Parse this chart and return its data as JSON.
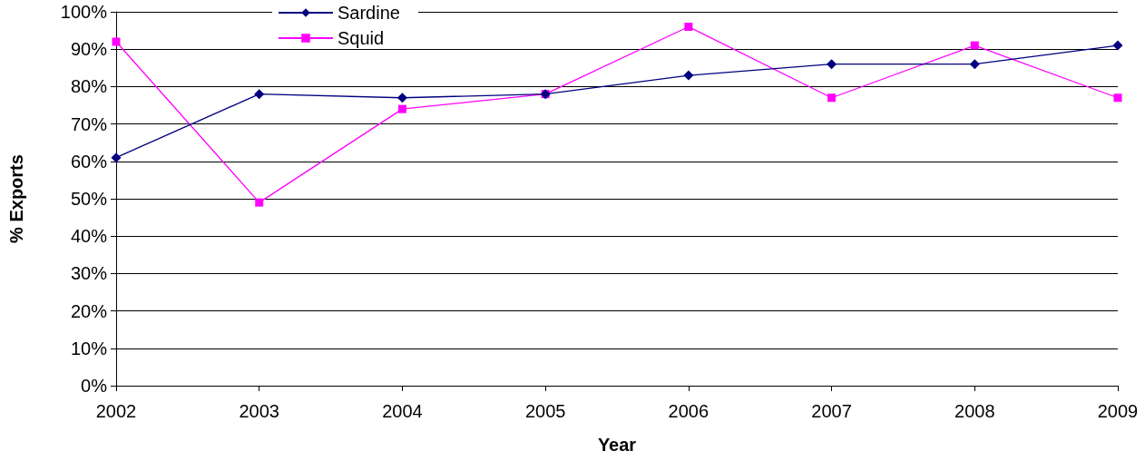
{
  "chart_data": {
    "type": "line",
    "xlabel": "Year",
    "ylabel": "% Exports",
    "categories": [
      "2002",
      "2003",
      "2004",
      "2005",
      "2006",
      "2007",
      "2008",
      "2009"
    ],
    "series": [
      {
        "name": "Sardine",
        "color": "#000080",
        "marker": "diamond",
        "values": [
          61,
          78,
          77,
          78,
          83,
          86,
          86,
          91
        ]
      },
      {
        "name": "Squid",
        "color": "#ff00ff",
        "marker": "square",
        "values": [
          92,
          49,
          74,
          78,
          96,
          77,
          91,
          77
        ]
      }
    ],
    "ylim": [
      0,
      100
    ],
    "yticks": [
      {
        "value": 0,
        "label": "0%"
      },
      {
        "value": 10,
        "label": "10%"
      },
      {
        "value": 20,
        "label": "20%"
      },
      {
        "value": 30,
        "label": "30%"
      },
      {
        "value": 40,
        "label": "40%"
      },
      {
        "value": 50,
        "label": "50%"
      },
      {
        "value": 60,
        "label": "60%"
      },
      {
        "value": 70,
        "label": "70%"
      },
      {
        "value": 80,
        "label": "80%"
      },
      {
        "value": 90,
        "label": "90%"
      },
      {
        "value": 100,
        "label": "100%"
      }
    ],
    "grid": "y",
    "legend": "top",
    "line_style": "solid"
  }
}
